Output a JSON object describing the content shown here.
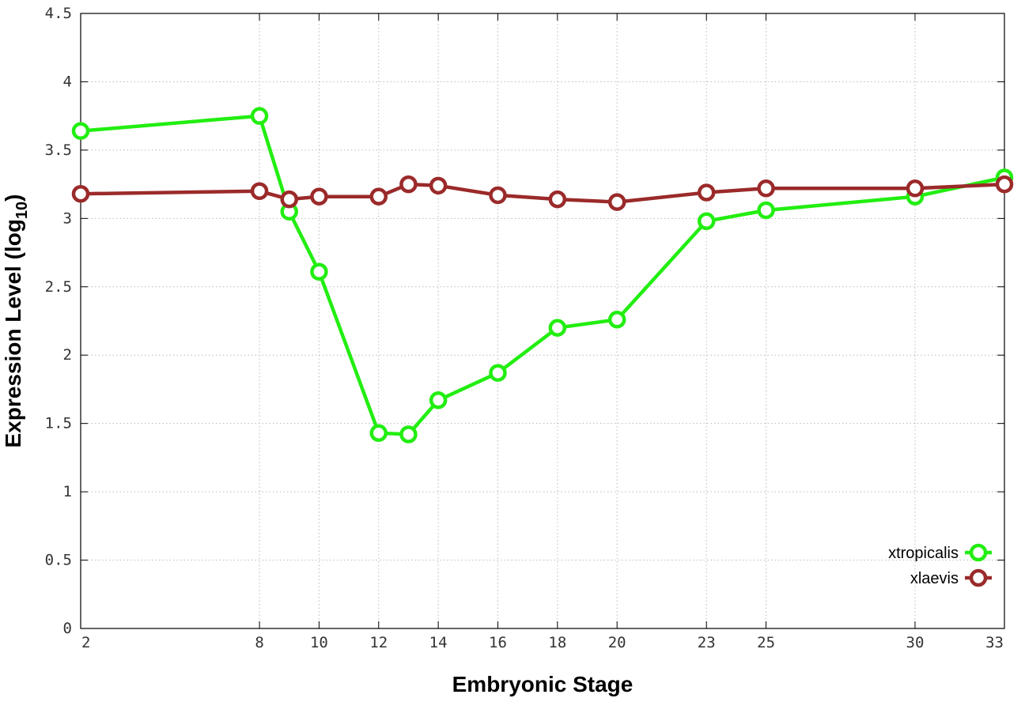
{
  "chart_data": {
    "type": "line",
    "xlabel": "Embryonic Stage",
    "ylabel_main": "Expression Level (log",
    "ylabel_sub": "10",
    "ylabel_close": ")",
    "xlim": [
      2,
      33
    ],
    "ylim": [
      0,
      4.5
    ],
    "x": [
      2,
      8,
      9,
      10,
      12,
      13,
      14,
      16,
      18,
      20,
      23,
      25,
      30,
      33
    ],
    "xtick_labels": [
      "2",
      "8",
      "10",
      "12",
      "14",
      "16",
      "18",
      "20",
      "23",
      "25",
      "30",
      "33"
    ],
    "xtick_values": [
      2,
      8,
      10,
      12,
      14,
      16,
      18,
      20,
      23,
      25,
      30,
      33
    ],
    "ytick_labels": [
      "0",
      "0.5",
      "1",
      "1.5",
      "2",
      "2.5",
      "3",
      "3.5",
      "4",
      "4.5"
    ],
    "ytick_values": [
      0,
      0.5,
      1,
      1.5,
      2,
      2.5,
      3,
      3.5,
      4,
      4.5
    ],
    "grid": true,
    "legend_position": "bottom-right",
    "series": [
      {
        "name": "xtropicalis",
        "color": "#22ee11",
        "values": [
          3.64,
          3.75,
          3.05,
          2.61,
          1.43,
          1.42,
          1.67,
          1.87,
          2.2,
          2.26,
          2.98,
          3.06,
          3.16,
          3.3
        ]
      },
      {
        "name": "xlaevis",
        "color": "#9b2a2a",
        "values": [
          3.18,
          3.2,
          3.14,
          3.16,
          3.16,
          3.25,
          3.24,
          3.17,
          3.14,
          3.12,
          3.19,
          3.22,
          3.22,
          3.25
        ]
      }
    ]
  }
}
